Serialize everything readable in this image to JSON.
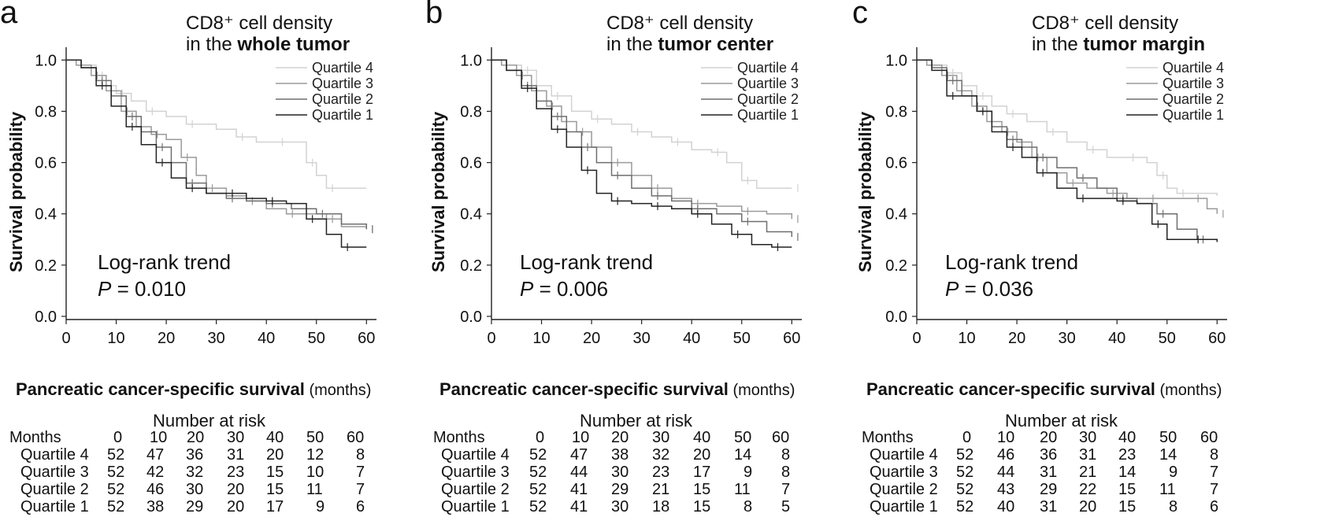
{
  "chart_data": [
    {
      "panel": "a",
      "type": "line",
      "title_line1": "CD8⁺ cell density",
      "title_line2_prefix": "in the ",
      "title_line2_bold": "whole tumor",
      "xlabel_bold": "Pancreatic cancer-specific survival",
      "xlabel_unit": " (months)",
      "ylabel": "Survival probability",
      "xlim": [
        0,
        62
      ],
      "ylim": [
        0,
        1.05
      ],
      "x_ticks": [
        0,
        10,
        20,
        30,
        40,
        50,
        60
      ],
      "y_ticks": [
        "0.0",
        "0.2",
        "0.4",
        "0.6",
        "0.8",
        "1.0"
      ],
      "stat_label": "Log-rank trend",
      "p_label": "P",
      "p_value": " = 0.010",
      "series": [
        {
          "name": "Quartile 4",
          "color": "#d2d2d2",
          "x": [
            0,
            2,
            6,
            8,
            10,
            13,
            16,
            20,
            24,
            30,
            34,
            38,
            42,
            45,
            48,
            50,
            52,
            60
          ],
          "y": [
            1.0,
            0.98,
            0.94,
            0.9,
            0.87,
            0.84,
            0.8,
            0.78,
            0.75,
            0.73,
            0.7,
            0.68,
            0.68,
            0.68,
            0.6,
            0.55,
            0.5,
            0.5
          ]
        },
        {
          "name": "Quartile 3",
          "color": "#9a9a9a",
          "x": [
            0,
            2,
            5,
            8,
            11,
            14,
            17,
            20,
            23,
            26,
            28,
            32,
            36,
            40,
            44,
            48,
            52,
            55,
            60
          ],
          "y": [
            1.0,
            0.98,
            0.94,
            0.88,
            0.8,
            0.74,
            0.71,
            0.69,
            0.62,
            0.55,
            0.5,
            0.47,
            0.45,
            0.42,
            0.4,
            0.4,
            0.38,
            0.35,
            0.34
          ]
        },
        {
          "name": "Quartile 2",
          "color": "#6f6f6f",
          "x": [
            0,
            3,
            6,
            9,
            12,
            15,
            18,
            21,
            24,
            28,
            32,
            36,
            40,
            45,
            50,
            55,
            60
          ],
          "y": [
            1.0,
            0.97,
            0.92,
            0.86,
            0.78,
            0.72,
            0.66,
            0.6,
            0.52,
            0.48,
            0.46,
            0.45,
            0.44,
            0.42,
            0.4,
            0.36,
            0.34
          ]
        },
        {
          "name": "Quartile 1",
          "color": "#222222",
          "x": [
            0,
            3,
            6,
            9,
            12,
            15,
            18,
            21,
            24,
            28,
            32,
            36,
            40,
            44,
            48,
            52,
            55,
            60
          ],
          "y": [
            1.0,
            0.97,
            0.9,
            0.82,
            0.74,
            0.67,
            0.6,
            0.54,
            0.5,
            0.48,
            0.48,
            0.46,
            0.45,
            0.44,
            0.38,
            0.32,
            0.27,
            0.27
          ]
        }
      ],
      "risk_title": "Number at risk",
      "risk_header": "Months",
      "risk_months": [
        "0",
        "10",
        "20",
        "30",
        "40",
        "50",
        "60"
      ],
      "risk_rows": [
        {
          "label": "Quartile 4",
          "values": [
            "52",
            "47",
            "36",
            "31",
            "20",
            "12",
            "8"
          ]
        },
        {
          "label": "Quartile 3",
          "values": [
            "52",
            "42",
            "32",
            "23",
            "15",
            "10",
            "7"
          ]
        },
        {
          "label": "Quartile 2",
          "values": [
            "52",
            "46",
            "30",
            "20",
            "15",
            "11",
            "7"
          ]
        },
        {
          "label": "Quartile 1",
          "values": [
            "52",
            "38",
            "29",
            "20",
            "17",
            "9",
            "6"
          ]
        }
      ]
    },
    {
      "panel": "b",
      "type": "line",
      "title_line1": "CD8⁺ cell density",
      "title_line2_prefix": "in the ",
      "title_line2_bold": "tumor center",
      "xlabel_bold": "Pancreatic cancer-specific survival",
      "xlabel_unit": " (months)",
      "ylabel": "Survival probability",
      "xlim": [
        0,
        62
      ],
      "ylim": [
        0,
        1.05
      ],
      "x_ticks": [
        0,
        10,
        20,
        30,
        40,
        50,
        60
      ],
      "y_ticks": [
        "0.0",
        "0.2",
        "0.4",
        "0.6",
        "0.8",
        "1.0"
      ],
      "stat_label": "Log-rank trend",
      "p_label": "P",
      "p_value": " = 0.006",
      "series": [
        {
          "name": "Quartile 4",
          "color": "#d2d2d2",
          "x": [
            0,
            2,
            6,
            9,
            12,
            16,
            20,
            24,
            28,
            32,
            36,
            40,
            44,
            47,
            50,
            53,
            60
          ],
          "y": [
            1.0,
            0.98,
            0.96,
            0.9,
            0.86,
            0.8,
            0.77,
            0.75,
            0.72,
            0.7,
            0.68,
            0.65,
            0.64,
            0.6,
            0.53,
            0.5,
            0.5
          ]
        },
        {
          "name": "Quartile 3",
          "color": "#9a9a9a",
          "x": [
            0,
            2,
            5,
            8,
            11,
            14,
            17,
            20,
            24,
            28,
            32,
            36,
            40,
            45,
            50,
            55,
            60
          ],
          "y": [
            1.0,
            0.98,
            0.94,
            0.88,
            0.82,
            0.76,
            0.72,
            0.66,
            0.6,
            0.55,
            0.5,
            0.46,
            0.44,
            0.43,
            0.41,
            0.4,
            0.38
          ]
        },
        {
          "name": "Quartile 2",
          "color": "#6f6f6f",
          "x": [
            0,
            3,
            6,
            9,
            12,
            15,
            18,
            21,
            24,
            28,
            32,
            36,
            40,
            45,
            50,
            55,
            60
          ],
          "y": [
            1.0,
            0.96,
            0.9,
            0.84,
            0.78,
            0.72,
            0.66,
            0.6,
            0.55,
            0.5,
            0.47,
            0.45,
            0.42,
            0.4,
            0.37,
            0.33,
            0.31
          ]
        },
        {
          "name": "Quartile 1",
          "color": "#222222",
          "x": [
            0,
            3,
            6,
            9,
            12,
            15,
            18,
            21,
            24,
            28,
            32,
            36,
            40,
            44,
            48,
            52,
            56,
            60
          ],
          "y": [
            1.0,
            0.96,
            0.89,
            0.81,
            0.73,
            0.66,
            0.57,
            0.48,
            0.45,
            0.44,
            0.43,
            0.42,
            0.4,
            0.36,
            0.32,
            0.28,
            0.27,
            0.27
          ]
        }
      ],
      "risk_title": "Number at risk",
      "risk_header": "Months",
      "risk_months": [
        "0",
        "10",
        "20",
        "30",
        "40",
        "50",
        "60"
      ],
      "risk_rows": [
        {
          "label": "Quartile 4",
          "values": [
            "52",
            "47",
            "38",
            "32",
            "20",
            "14",
            "8"
          ]
        },
        {
          "label": "Quartile 3",
          "values": [
            "52",
            "44",
            "30",
            "23",
            "17",
            "9",
            "8"
          ]
        },
        {
          "label": "Quartile 2",
          "values": [
            "52",
            "41",
            "29",
            "21",
            "15",
            "11",
            "7"
          ]
        },
        {
          "label": "Quartile 1",
          "values": [
            "52",
            "41",
            "30",
            "18",
            "15",
            "8",
            "5"
          ]
        }
      ]
    },
    {
      "panel": "c",
      "type": "line",
      "title_line1": "CD8⁺ cell density",
      "title_line2_prefix": "in the ",
      "title_line2_bold": "tumor margin",
      "xlabel_bold": "Pancreatic cancer-specific survival",
      "xlabel_unit": " (months)",
      "ylabel": "Survival probability",
      "xlim": [
        0,
        62
      ],
      "ylim": [
        0,
        1.05
      ],
      "x_ticks": [
        0,
        10,
        20,
        30,
        40,
        50,
        60
      ],
      "y_ticks": [
        "0.0",
        "0.2",
        "0.4",
        "0.6",
        "0.8",
        "1.0"
      ],
      "stat_label": "Log-rank trend",
      "p_label": "P",
      "p_value": " = 0.036",
      "series": [
        {
          "name": "Quartile 4",
          "color": "#d2d2d2",
          "x": [
            0,
            2,
            6,
            9,
            12,
            15,
            18,
            22,
            26,
            30,
            34,
            38,
            42,
            46,
            48,
            50,
            52,
            60
          ],
          "y": [
            1.0,
            0.98,
            0.95,
            0.9,
            0.86,
            0.82,
            0.79,
            0.76,
            0.72,
            0.68,
            0.65,
            0.62,
            0.62,
            0.6,
            0.55,
            0.5,
            0.48,
            0.47
          ]
        },
        {
          "name": "Quartile 3",
          "color": "#9a9a9a",
          "x": [
            0,
            2,
            5,
            8,
            11,
            14,
            17,
            20,
            23,
            26,
            30,
            34,
            38,
            42,
            46,
            50,
            55,
            58,
            60
          ],
          "y": [
            1.0,
            0.98,
            0.94,
            0.88,
            0.82,
            0.76,
            0.72,
            0.68,
            0.62,
            0.56,
            0.52,
            0.5,
            0.48,
            0.46,
            0.46,
            0.46,
            0.46,
            0.42,
            0.4
          ]
        },
        {
          "name": "Quartile 2",
          "color": "#6f6f6f",
          "x": [
            0,
            3,
            6,
            9,
            12,
            15,
            18,
            21,
            24,
            28,
            32,
            36,
            40,
            44,
            48,
            52,
            56,
            60
          ],
          "y": [
            1.0,
            0.97,
            0.92,
            0.86,
            0.8,
            0.74,
            0.69,
            0.66,
            0.62,
            0.58,
            0.54,
            0.5,
            0.46,
            0.44,
            0.4,
            0.34,
            0.3,
            0.3
          ]
        },
        {
          "name": "Quartile 1",
          "color": "#222222",
          "x": [
            0,
            3,
            6,
            9,
            12,
            15,
            18,
            21,
            24,
            28,
            32,
            36,
            40,
            44,
            47,
            50,
            55,
            60
          ],
          "y": [
            1.0,
            0.96,
            0.86,
            0.86,
            0.8,
            0.72,
            0.66,
            0.62,
            0.56,
            0.5,
            0.46,
            0.46,
            0.45,
            0.44,
            0.36,
            0.3,
            0.3,
            0.29
          ]
        }
      ],
      "risk_title": "Number at risk",
      "risk_header": "Months",
      "risk_months": [
        "0",
        "10",
        "20",
        "30",
        "40",
        "50",
        "60"
      ],
      "risk_rows": [
        {
          "label": "Quartile 4",
          "values": [
            "52",
            "46",
            "36",
            "31",
            "23",
            "14",
            "8"
          ]
        },
        {
          "label": "Quartile 3",
          "values": [
            "52",
            "44",
            "31",
            "21",
            "14",
            "9",
            "7"
          ]
        },
        {
          "label": "Quartile 2",
          "values": [
            "52",
            "43",
            "29",
            "22",
            "15",
            "11",
            "7"
          ]
        },
        {
          "label": "Quartile 1",
          "values": [
            "52",
            "40",
            "31",
            "20",
            "15",
            "8",
            "6"
          ]
        }
      ]
    }
  ]
}
